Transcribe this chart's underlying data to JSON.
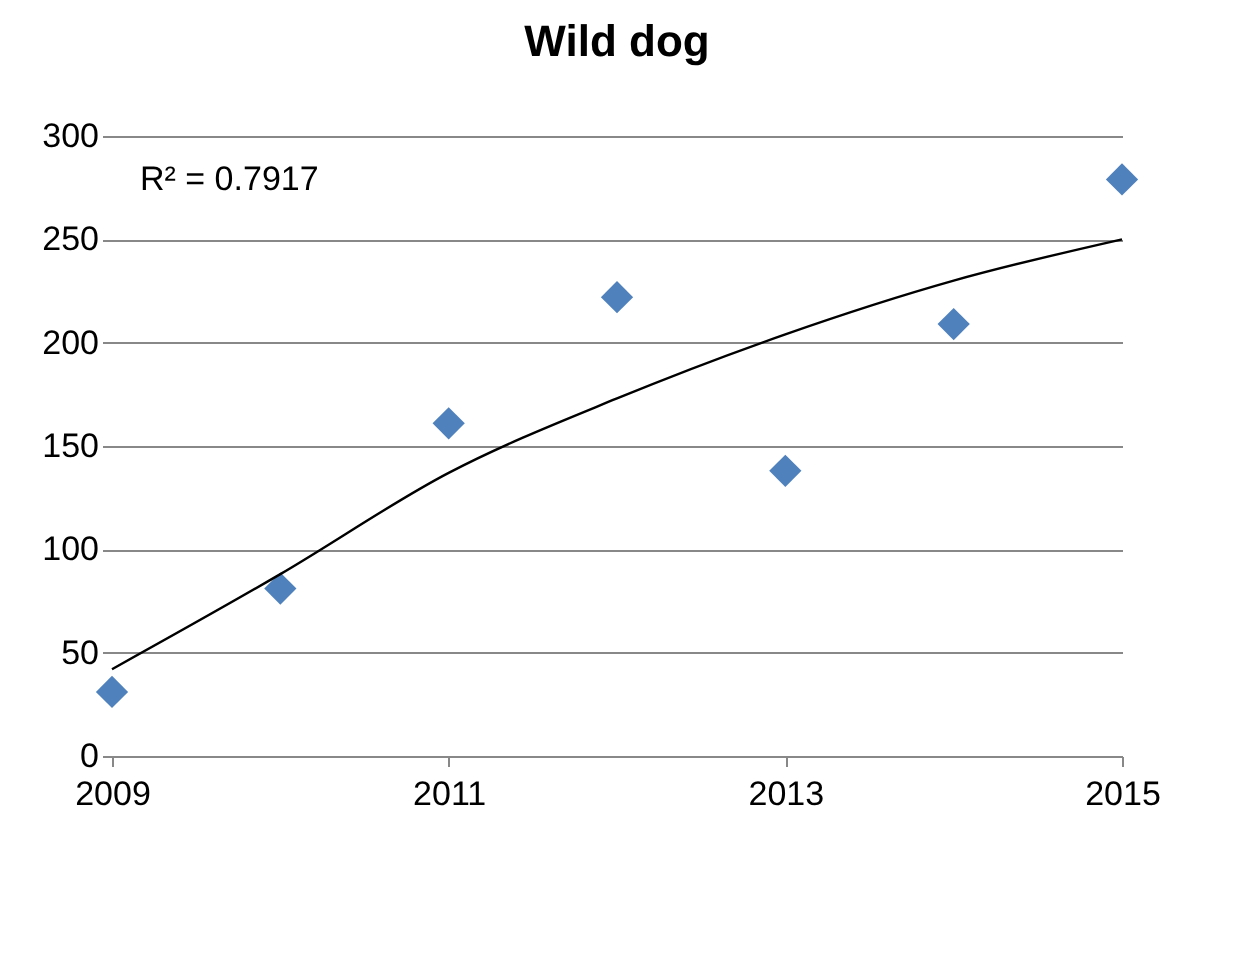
{
  "chart_data": {
    "type": "scatter",
    "title": "Wild dog",
    "x": [
      2009,
      2010,
      2011,
      2012,
      2013,
      2014,
      2015
    ],
    "series": [
      {
        "color": "#4f81bd",
        "marker": "diamond",
        "values": [
          31,
          81,
          161,
          222,
          138,
          209,
          279
        ]
      },
      {
        "type": "line",
        "color": "#000000",
        "x": [
          2009,
          2010,
          2011,
          2012,
          2013,
          2014,
          2015
        ],
        "values": [
          42,
          88,
          137,
          173,
          204,
          230,
          250
        ]
      }
    ],
    "annotations": [
      "R² = 0.7917"
    ],
    "xlim": [
      2009,
      2015
    ],
    "xticks": [
      2009,
      2011,
      2013,
      2015
    ],
    "ylim": [
      0,
      300
    ],
    "yticks": [
      0,
      50,
      100,
      150,
      200,
      250,
      300
    ],
    "grid": "y"
  }
}
